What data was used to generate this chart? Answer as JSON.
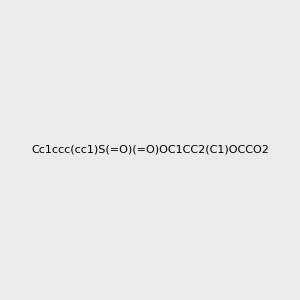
{
  "smiles": "Cc1ccc(cc1)S(=O)(=O)OC1CC2(C1)OCCO2",
  "bg_color": "#ebebeb",
  "img_size": [
    300,
    300
  ],
  "title": ""
}
